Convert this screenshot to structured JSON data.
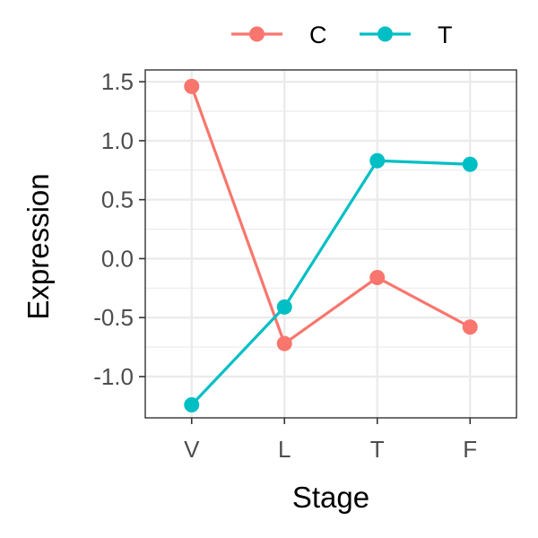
{
  "chart_data": {
    "type": "line",
    "xlabel": "Stage",
    "ylabel": "Expression",
    "categories": [
      "V",
      "L",
      "T",
      "F"
    ],
    "yticks": [
      "1.5",
      "1.0",
      "0.5",
      "0.0",
      "-0.5",
      "-1.0"
    ],
    "ytick_values": [
      1.5,
      1.0,
      0.5,
      0.0,
      -0.5,
      -1.0
    ],
    "ylim": [
      -1.35,
      1.6
    ],
    "grid": true,
    "legend_position": "top",
    "series": [
      {
        "name": "C",
        "color": "#F8766D",
        "values": [
          1.46,
          -0.72,
          -0.16,
          -0.58
        ]
      },
      {
        "name": "T",
        "color": "#00BFC4",
        "values": [
          -1.24,
          -0.41,
          0.83,
          0.8
        ]
      }
    ]
  }
}
